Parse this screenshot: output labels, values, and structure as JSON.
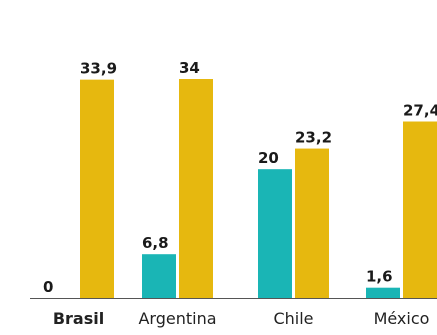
{
  "chart_data": {
    "type": "bar",
    "categories": [
      "Brasil",
      "Argentina",
      "Chile",
      "México"
    ],
    "series": [
      {
        "values": [
          0,
          6.8,
          20,
          1.6
        ],
        "value_labels": [
          "0",
          "6,8",
          "20",
          "1,6"
        ],
        "color": "#1ab5b5"
      },
      {
        "values": [
          33.9,
          34,
          23.2,
          27.4
        ],
        "value_labels": [
          "33,9",
          "34",
          "23,2",
          "27,4"
        ],
        "color": "#e6b80f"
      }
    ],
    "highlighted_category": "Brasil",
    "ylim": [
      0,
      34
    ],
    "baseline_color": "#555555",
    "grid": false,
    "legend": "none"
  }
}
